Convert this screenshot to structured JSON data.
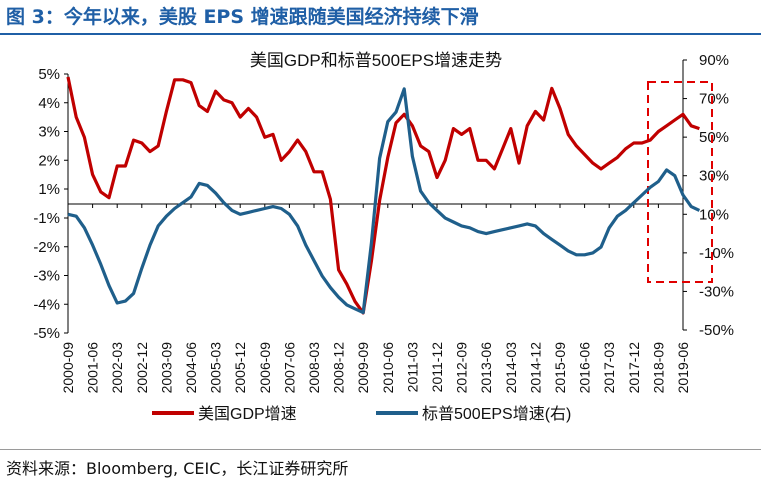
{
  "figure_title": "图 3：今年以来，美股 EPS 增速跟随美国经济持续下滑",
  "source_note": "资料来源：Bloomberg, CEIC，长江证券研究所",
  "colors": {
    "gdp": "#c00000",
    "eps": "#1f5f8b",
    "title": "#1f5fa6",
    "box": "#e00000"
  },
  "chart_data": {
    "type": "line",
    "title": "美国GDP和标普500EPS增速走势",
    "x_ticks": [
      "2000-09",
      "2001-06",
      "2002-03",
      "2002-12",
      "2003-09",
      "2004-06",
      "2005-03",
      "2005-12",
      "2006-09",
      "2007-06",
      "2008-03",
      "2008-12",
      "2009-09",
      "2010-06",
      "2011-03",
      "2011-12",
      "2012-09",
      "2013-06",
      "2014-03",
      "2014-12",
      "2015-09",
      "2016-06",
      "2017-03",
      "2017-12",
      "2018-09",
      "2019-06"
    ],
    "y_left": {
      "ticks": [
        5,
        4,
        3,
        2,
        1,
        -1,
        -2,
        -3,
        -4,
        -5
      ],
      "labels": [
        "5%",
        "4%",
        "3%",
        "2%",
        "1%",
        "-1%",
        "-2%",
        "-3%",
        "-4%",
        "-5%"
      ]
    },
    "y_right": {
      "ticks": [
        90,
        70,
        50,
        30,
        10,
        -10,
        -30,
        -50
      ],
      "labels": [
        "90%",
        "70%",
        "50%",
        "30%",
        "10%",
        "-10%",
        "-30%",
        "-50%"
      ],
      "range": [
        -50,
        90
      ]
    },
    "series": [
      {
        "name": "美国GDP增速",
        "axis": "left",
        "values": [
          {
            "x": "2000-09",
            "y": 4.9
          },
          {
            "x": "2000-12",
            "y": 3.5
          },
          {
            "x": "2001-03",
            "y": 2.8
          },
          {
            "x": "2001-06",
            "y": 1.5
          },
          {
            "x": "2001-09",
            "y": 0.8
          },
          {
            "x": "2001-12",
            "y": 0.4
          },
          {
            "x": "2002-03",
            "y": 1.8
          },
          {
            "x": "2002-06",
            "y": 1.8
          },
          {
            "x": "2002-09",
            "y": 2.7
          },
          {
            "x": "2002-12",
            "y": 2.6
          },
          {
            "x": "2003-03",
            "y": 2.3
          },
          {
            "x": "2003-06",
            "y": 2.5
          },
          {
            "x": "2003-09",
            "y": 3.7
          },
          {
            "x": "2003-12",
            "y": 4.8
          },
          {
            "x": "2004-03",
            "y": 4.8
          },
          {
            "x": "2004-06",
            "y": 4.7
          },
          {
            "x": "2004-09",
            "y": 3.9
          },
          {
            "x": "2004-12",
            "y": 3.7
          },
          {
            "x": "2005-03",
            "y": 4.4
          },
          {
            "x": "2005-06",
            "y": 4.1
          },
          {
            "x": "2005-09",
            "y": 4.0
          },
          {
            "x": "2005-12",
            "y": 3.5
          },
          {
            "x": "2006-03",
            "y": 3.8
          },
          {
            "x": "2006-06",
            "y": 3.5
          },
          {
            "x": "2006-09",
            "y": 2.8
          },
          {
            "x": "2006-12",
            "y": 2.9
          },
          {
            "x": "2007-03",
            "y": 2.0
          },
          {
            "x": "2007-06",
            "y": 2.3
          },
          {
            "x": "2007-09",
            "y": 2.7
          },
          {
            "x": "2007-12",
            "y": 2.3
          },
          {
            "x": "2008-03",
            "y": 1.6
          },
          {
            "x": "2008-06",
            "y": 1.6
          },
          {
            "x": "2008-09",
            "y": 0.3
          },
          {
            "x": "2008-12",
            "y": -2.8
          },
          {
            "x": "2009-03",
            "y": -3.3
          },
          {
            "x": "2009-06",
            "y": -3.9
          },
          {
            "x": "2009-09",
            "y": -4.3
          },
          {
            "x": "2009-12",
            "y": -2.5
          },
          {
            "x": "2010-03",
            "y": 0.2
          },
          {
            "x": "2010-06",
            "y": 2.1
          },
          {
            "x": "2010-09",
            "y": 3.3
          },
          {
            "x": "2010-12",
            "y": 3.6
          },
          {
            "x": "2011-03",
            "y": 3.2
          },
          {
            "x": "2011-06",
            "y": 2.5
          },
          {
            "x": "2011-09",
            "y": 2.3
          },
          {
            "x": "2011-12",
            "y": 1.4
          },
          {
            "x": "2012-03",
            "y": 2.0
          },
          {
            "x": "2012-06",
            "y": 3.1
          },
          {
            "x": "2012-09",
            "y": 2.9
          },
          {
            "x": "2012-12",
            "y": 3.1
          },
          {
            "x": "2013-03",
            "y": 2.0
          },
          {
            "x": "2013-06",
            "y": 2.0
          },
          {
            "x": "2013-09",
            "y": 1.7
          },
          {
            "x": "2013-12",
            "y": 2.4
          },
          {
            "x": "2014-03",
            "y": 3.1
          },
          {
            "x": "2014-06",
            "y": 1.9
          },
          {
            "x": "2014-09",
            "y": 3.2
          },
          {
            "x": "2014-12",
            "y": 3.7
          },
          {
            "x": "2015-03",
            "y": 3.4
          },
          {
            "x": "2015-06",
            "y": 4.5
          },
          {
            "x": "2015-09",
            "y": 3.8
          },
          {
            "x": "2015-12",
            "y": 2.9
          },
          {
            "x": "2016-03",
            "y": 2.5
          },
          {
            "x": "2016-06",
            "y": 2.2
          },
          {
            "x": "2016-09",
            "y": 1.9
          },
          {
            "x": "2016-12",
            "y": 1.7
          },
          {
            "x": "2017-03",
            "y": 1.9
          },
          {
            "x": "2017-06",
            "y": 2.1
          },
          {
            "x": "2017-09",
            "y": 2.4
          },
          {
            "x": "2017-12",
            "y": 2.6
          },
          {
            "x": "2018-03",
            "y": 2.6
          },
          {
            "x": "2018-06",
            "y": 2.7
          },
          {
            "x": "2018-09",
            "y": 3.0
          },
          {
            "x": "2018-12",
            "y": 3.2
          },
          {
            "x": "2019-03",
            "y": 3.4
          },
          {
            "x": "2019-06",
            "y": 3.6
          },
          {
            "x": "2019-09",
            "y": 3.2
          },
          {
            "x": "2019-12",
            "y": 3.1
          },
          {
            "x": "2020-03",
            "y": 3.0
          },
          {
            "x": "2020-06",
            "y": 2.8
          }
        ]
      },
      {
        "name": "标普500EPS增速(右)",
        "axis": "right",
        "values": [
          {
            "x": "2000-09",
            "y": 10
          },
          {
            "x": "2000-12",
            "y": 9
          },
          {
            "x": "2001-03",
            "y": 3
          },
          {
            "x": "2001-06",
            "y": -6
          },
          {
            "x": "2001-09",
            "y": -16
          },
          {
            "x": "2001-12",
            "y": -27
          },
          {
            "x": "2002-03",
            "y": -36
          },
          {
            "x": "2002-06",
            "y": -35
          },
          {
            "x": "2002-09",
            "y": -31
          },
          {
            "x": "2002-12",
            "y": -18
          },
          {
            "x": "2003-03",
            "y": -6
          },
          {
            "x": "2003-06",
            "y": 4
          },
          {
            "x": "2003-09",
            "y": 9
          },
          {
            "x": "2003-12",
            "y": 13
          },
          {
            "x": "2004-03",
            "y": 16
          },
          {
            "x": "2004-06",
            "y": 19
          },
          {
            "x": "2004-09",
            "y": 26
          },
          {
            "x": "2004-12",
            "y": 25
          },
          {
            "x": "2005-03",
            "y": 21
          },
          {
            "x": "2005-06",
            "y": 16
          },
          {
            "x": "2005-09",
            "y": 12
          },
          {
            "x": "2005-12",
            "y": 10
          },
          {
            "x": "2006-03",
            "y": 11
          },
          {
            "x": "2006-06",
            "y": 12
          },
          {
            "x": "2006-09",
            "y": 13
          },
          {
            "x": "2006-12",
            "y": 14
          },
          {
            "x": "2007-03",
            "y": 13
          },
          {
            "x": "2007-06",
            "y": 10
          },
          {
            "x": "2007-09",
            "y": 4
          },
          {
            "x": "2007-12",
            "y": -6
          },
          {
            "x": "2008-03",
            "y": -14
          },
          {
            "x": "2008-06",
            "y": -22
          },
          {
            "x": "2008-09",
            "y": -28
          },
          {
            "x": "2008-12",
            "y": -33
          },
          {
            "x": "2009-03",
            "y": -37
          },
          {
            "x": "2009-06",
            "y": -39
          },
          {
            "x": "2009-09",
            "y": -41
          },
          {
            "x": "2009-12",
            "y": -5
          },
          {
            "x": "2010-03",
            "y": 39
          },
          {
            "x": "2010-06",
            "y": 58
          },
          {
            "x": "2010-09",
            "y": 63
          },
          {
            "x": "2010-12",
            "y": 75
          },
          {
            "x": "2011-03",
            "y": 40
          },
          {
            "x": "2011-06",
            "y": 22
          },
          {
            "x": "2011-09",
            "y": 16
          },
          {
            "x": "2011-12",
            "y": 12
          },
          {
            "x": "2012-03",
            "y": 8
          },
          {
            "x": "2012-06",
            "y": 6
          },
          {
            "x": "2012-09",
            "y": 4
          },
          {
            "x": "2012-12",
            "y": 3
          },
          {
            "x": "2013-03",
            "y": 1
          },
          {
            "x": "2013-06",
            "y": 0
          },
          {
            "x": "2013-09",
            "y": 1
          },
          {
            "x": "2013-12",
            "y": 2
          },
          {
            "x": "2014-03",
            "y": 3
          },
          {
            "x": "2014-06",
            "y": 4
          },
          {
            "x": "2014-09",
            "y": 5
          },
          {
            "x": "2014-12",
            "y": 4
          },
          {
            "x": "2015-03",
            "y": 0
          },
          {
            "x": "2015-06",
            "y": -3
          },
          {
            "x": "2015-09",
            "y": -6
          },
          {
            "x": "2015-12",
            "y": -9
          },
          {
            "x": "2016-03",
            "y": -11
          },
          {
            "x": "2016-06",
            "y": -11
          },
          {
            "x": "2016-09",
            "y": -10
          },
          {
            "x": "2016-12",
            "y": -7
          },
          {
            "x": "2017-03",
            "y": 3
          },
          {
            "x": "2017-06",
            "y": 9
          },
          {
            "x": "2017-09",
            "y": 12
          },
          {
            "x": "2017-12",
            "y": 16
          },
          {
            "x": "2018-03",
            "y": 20
          },
          {
            "x": "2018-06",
            "y": 24
          },
          {
            "x": "2018-09",
            "y": 27
          },
          {
            "x": "2018-12",
            "y": 33
          },
          {
            "x": "2019-03",
            "y": 30
          },
          {
            "x": "2019-06",
            "y": 20
          },
          {
            "x": "2019-09",
            "y": 14
          },
          {
            "x": "2019-12",
            "y": 12
          }
        ]
      }
    ],
    "grid": false,
    "legend_position": "bottom"
  }
}
